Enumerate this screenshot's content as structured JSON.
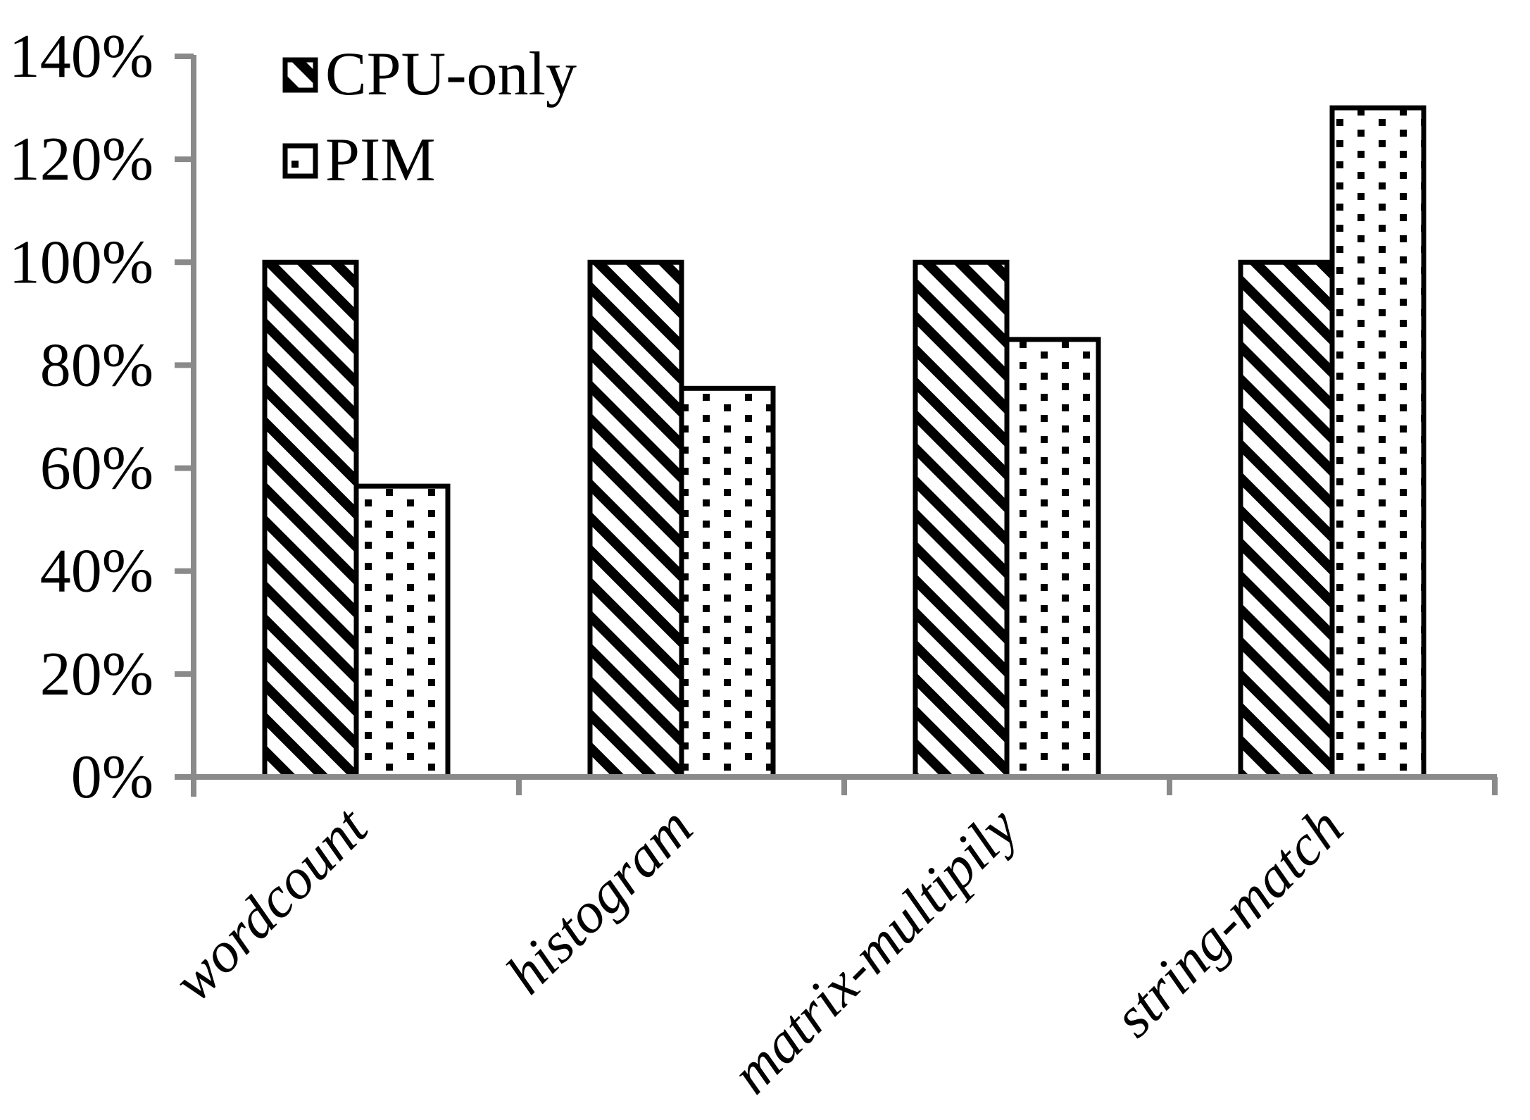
{
  "chart_data": {
    "type": "bar",
    "title": "",
    "xlabel": "",
    "ylabel": "",
    "categories": [
      "wordcount",
      "histogram",
      "matrix-multipily",
      "string-match"
    ],
    "series": [
      {
        "name": "CPU-only",
        "pattern": "diagonal-stripes",
        "values": [
          100,
          100,
          100,
          100
        ]
      },
      {
        "name": "PIM",
        "pattern": "dots",
        "values": [
          56.5,
          75.5,
          85,
          130
        ]
      }
    ],
    "y_axis": {
      "min": 0,
      "max": 140,
      "tick_step": 20,
      "unit": "%",
      "tick_labels": [
        "0%",
        "20%",
        "40%",
        "60%",
        "80%",
        "100%",
        "120%",
        "140%"
      ]
    },
    "x_axis": {
      "tick_labels_rotation_deg": 45
    },
    "legend": {
      "position": "top-left",
      "entries": [
        "CPU-only",
        "PIM"
      ]
    },
    "grid": "off",
    "colors": {
      "bar_fill": "#ffffff",
      "bar_stroke": "#000000",
      "pattern_color": "#000000",
      "axis": "#8a8a8a",
      "text": "#000000",
      "background": "#ffffff"
    }
  }
}
